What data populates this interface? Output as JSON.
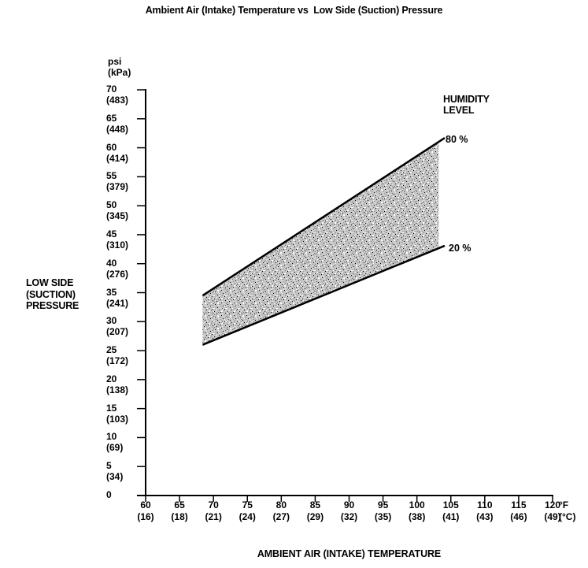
{
  "page": {
    "background": "#ffffff",
    "ink": "#000000"
  },
  "chart_data": {
    "type": "area",
    "title": "Ambient Air (Intake) Temperature vs  Low Side (Suction) Pressure",
    "x_axis": {
      "title": "AMBIENT AIR (INTAKE) TEMPERATURE",
      "unit_lines": [
        "°F",
        "(°C)"
      ],
      "range_f": [
        60,
        120
      ],
      "ticks": [
        {
          "f": 60,
          "c": 16
        },
        {
          "f": 65,
          "c": 18
        },
        {
          "f": 70,
          "c": 21
        },
        {
          "f": 75,
          "c": 24
        },
        {
          "f": 80,
          "c": 27
        },
        {
          "f": 85,
          "c": 29
        },
        {
          "f": 90,
          "c": 32
        },
        {
          "f": 95,
          "c": 35
        },
        {
          "f": 100,
          "c": 38
        },
        {
          "f": 105,
          "c": 41
        },
        {
          "f": 110,
          "c": 43
        },
        {
          "f": 115,
          "c": 46
        },
        {
          "f": 120,
          "c": 49
        }
      ]
    },
    "y_axis": {
      "title_lines": [
        "LOW SIDE",
        "(SUCTION)",
        "PRESSURE"
      ],
      "unit_lines": [
        "psi",
        "(kPa)"
      ],
      "range_psi": [
        0,
        70
      ],
      "ticks": [
        {
          "psi": 70,
          "kpa": 483
        },
        {
          "psi": 65,
          "kpa": 448
        },
        {
          "psi": 60,
          "kpa": 414
        },
        {
          "psi": 55,
          "kpa": 379
        },
        {
          "psi": 50,
          "kpa": 345
        },
        {
          "psi": 45,
          "kpa": 310
        },
        {
          "psi": 40,
          "kpa": 276
        },
        {
          "psi": 35,
          "kpa": 241
        },
        {
          "psi": 30,
          "kpa": 207
        },
        {
          "psi": 25,
          "kpa": 172
        },
        {
          "psi": 20,
          "kpa": 138
        },
        {
          "psi": 15,
          "kpa": 103
        },
        {
          "psi": 10,
          "kpa": 69
        },
        {
          "psi": 5,
          "kpa": 34
        },
        {
          "psi": 0
        }
      ]
    },
    "legend": {
      "title_lines": [
        "HUMIDITY",
        "LEVEL"
      ],
      "upper_label": "80 %",
      "lower_label": "20 %"
    },
    "band": {
      "fill_f": [
        68.4,
        103.2
      ],
      "upper": {
        "name": "80% humidity line",
        "f": [
          68.4,
          104.1
        ],
        "psi": [
          34.5,
          61.7
        ]
      },
      "lower": {
        "name": "20% humidity line",
        "f": [
          68.4,
          104.1
        ],
        "psi": [
          26.0,
          43.1
        ]
      },
      "fill_base_color": "#c5c5c5",
      "line_color": "#000000"
    }
  }
}
